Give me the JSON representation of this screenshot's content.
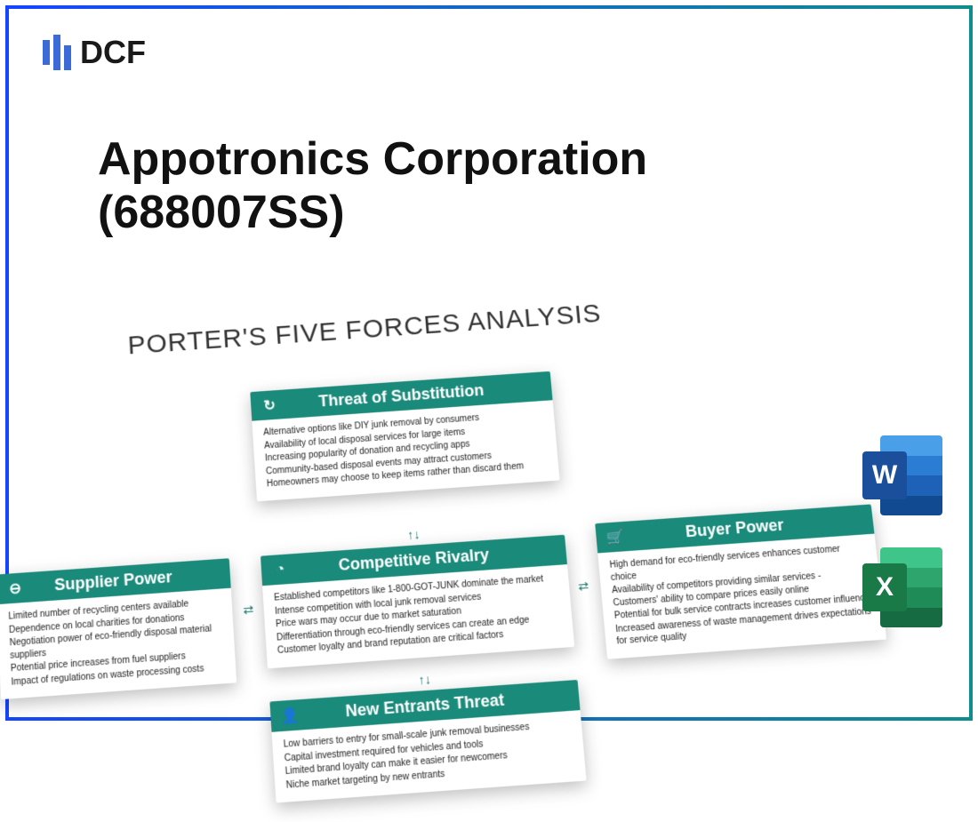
{
  "logo_text": "DCF",
  "title": "Appotronics Corporation (688007SS)",
  "diagram_title": "PORTER'S FIVE FORCES ANALYSIS",
  "colors": {
    "card_header": "#1a8a7a",
    "frame_start": "#1445ff",
    "frame_end": "#0f8d8d",
    "word_back": [
      "#4aa0e8",
      "#2b7cd3",
      "#1e62b8",
      "#124a91"
    ],
    "word_square": "#1b4f9c",
    "excel_back": [
      "#3fc48a",
      "#2fa56e",
      "#1f8b57",
      "#166b42"
    ],
    "excel_square": "#1a7a47"
  },
  "cards": {
    "substitution": {
      "title": "Threat of Substitution",
      "icon": "↻",
      "lines": [
        "Alternative options like DIY junk removal by consumers",
        "Availability of local disposal services for large items",
        "Increasing popularity of donation and recycling apps",
        "Community-based disposal events may attract customers",
        "Homeowners may choose to keep items rather than discard them"
      ]
    },
    "supplier": {
      "title": "Supplier Power",
      "icon": "⊖",
      "lines": [
        "Limited number of recycling centers available",
        "Dependence on local charities for donations",
        "Negotiation power of eco-friendly disposal material suppliers",
        "Potential price increases from fuel suppliers",
        "Impact of regulations on waste processing costs"
      ]
    },
    "rivalry": {
      "title": "Competitive Rivalry",
      "icon": "◔",
      "lines": [
        "Established competitors like 1-800-GOT-JUNK dominate the market",
        "Intense competition with local junk removal services",
        "Price wars may occur due to market saturation",
        "Differentiation through eco-friendly services can create an edge",
        "Customer loyalty and brand reputation are critical factors"
      ]
    },
    "buyer": {
      "title": "Buyer Power",
      "icon": "🛒",
      "lines": [
        "High demand for eco-friendly services enhances customer choice",
        "Availability of competitors providing similar services - Customers' ability to compare prices easily online",
        "Potential for bulk service contracts increases customer influence",
        "Increased awareness of waste management drives expectations for service quality"
      ]
    },
    "entrants": {
      "title": "New Entrants Threat",
      "icon": "👤",
      "lines": [
        "Low barriers to entry for small-scale junk removal businesses",
        "Capital investment required for vehicles and tools",
        "Limited brand loyalty can make it easier for newcomers",
        "Niche market targeting by new entrants"
      ]
    }
  },
  "file_icons": {
    "word": "W",
    "excel": "X"
  }
}
